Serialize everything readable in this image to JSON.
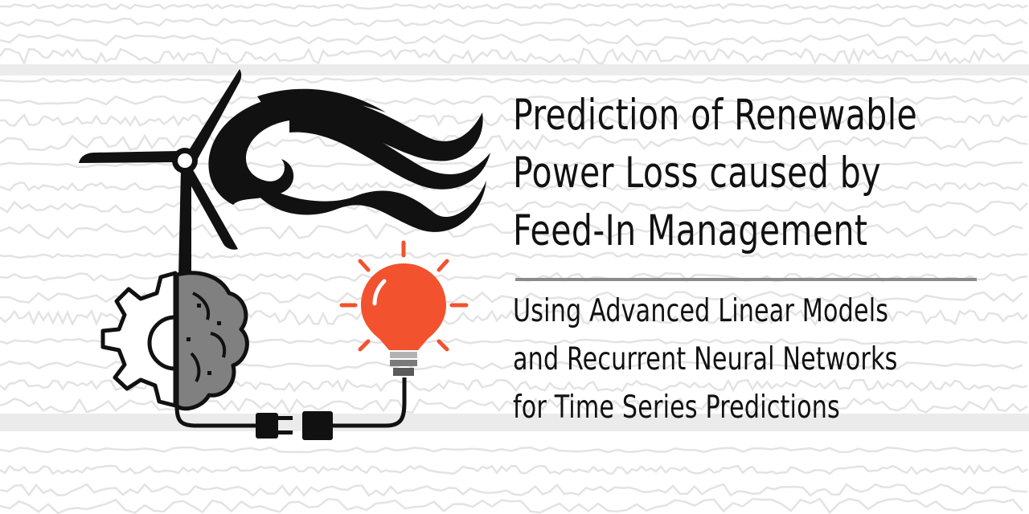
{
  "title_lines": [
    "Prediction of Renewable",
    "Power Loss caused by",
    "Feed-In Management"
  ],
  "subtitle_lines": [
    "Using Advanced Linear Models",
    "and Recurrent Neural Networks",
    "for Time Series Predictions"
  ],
  "icons": {
    "turbine": "wind-turbine-icon",
    "wind": "wind-swirl-icon",
    "gear_brain": "gear-brain-icon",
    "bulb": "light-bulb-icon",
    "plug": "power-plug-icon"
  },
  "colors": {
    "bulb": "#f2522e",
    "brain": "#808080",
    "ink": "#111111",
    "divider": "#8a8a8a",
    "background_lines": "#e6e6e6"
  }
}
